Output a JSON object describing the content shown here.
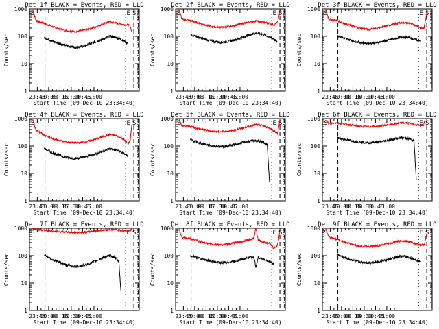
{
  "chart_data": {
    "type": "line",
    "yscale": "log",
    "ylim": [
      1,
      1000
    ],
    "ylabel": "Counts/sec",
    "xlabel": "Start Time (09-Dec-10 23:34:40)",
    "x_ticks": [
      "23:45",
      "00:00",
      "00:15",
      "00:30",
      "00:45",
      "01:00"
    ],
    "y_ticks": [
      "1",
      "10",
      "100",
      "1000"
    ],
    "markers": [
      "S",
      "E",
      "S"
    ],
    "colors": {
      "events": "#000000",
      "lld": "#ff0000",
      "axes": "#000000",
      "background": "#ffffff"
    },
    "panels": [
      {
        "title": "Det 1f BLACK = Events, RED = LLD",
        "red": [
          [
            23.65,
            900
          ],
          [
            23.72,
            380
          ],
          [
            23.9,
            300
          ],
          [
            24.1,
            220
          ],
          [
            24.4,
            160
          ],
          [
            24.6,
            150
          ],
          [
            24.8,
            170
          ],
          [
            25.0,
            210
          ],
          [
            25.2,
            280
          ],
          [
            25.35,
            340
          ],
          [
            25.5,
            300
          ],
          [
            25.65,
            270
          ],
          [
            25.75,
            260
          ],
          [
            25.8,
            240
          ],
          [
            25.83,
            150
          ]
        ],
        "black": [
          [
            23.9,
            90
          ],
          [
            24.1,
            65
          ],
          [
            24.4,
            45
          ],
          [
            24.6,
            40
          ],
          [
            24.8,
            45
          ],
          [
            25.0,
            60
          ],
          [
            25.2,
            80
          ],
          [
            25.35,
            100
          ],
          [
            25.5,
            90
          ],
          [
            25.65,
            70
          ],
          [
            25.75,
            55
          ]
        ],
        "lines": [
          23.92,
          25.7,
          25.88,
          25.98
        ]
      },
      {
        "title": "Det 2f BLACK = Events, RED = LLD",
        "red": [
          [
            23.65,
            950
          ],
          [
            23.72,
            420
          ],
          [
            23.9,
            380
          ],
          [
            24.1,
            300
          ],
          [
            24.4,
            220
          ],
          [
            24.6,
            210
          ],
          [
            24.8,
            230
          ],
          [
            25.0,
            280
          ],
          [
            25.2,
            330
          ],
          [
            25.35,
            360
          ],
          [
            25.5,
            330
          ],
          [
            25.65,
            300
          ],
          [
            25.75,
            260
          ],
          [
            25.83,
            330
          ],
          [
            25.88,
            800
          ]
        ],
        "black": [
          [
            23.9,
            120
          ],
          [
            24.1,
            90
          ],
          [
            24.4,
            65
          ],
          [
            24.6,
            60
          ],
          [
            24.8,
            68
          ],
          [
            25.0,
            85
          ],
          [
            25.2,
            115
          ],
          [
            25.35,
            130
          ],
          [
            25.5,
            120
          ],
          [
            25.65,
            95
          ],
          [
            25.75,
            80
          ],
          [
            25.82,
            60
          ]
        ],
        "lines": [
          23.92,
          25.7,
          25.88,
          25.98
        ]
      },
      {
        "title": "Det 3f BLACK = Events, RED = LLD",
        "red": [
          [
            23.65,
            950
          ],
          [
            23.72,
            420
          ],
          [
            23.9,
            380
          ],
          [
            24.1,
            280
          ],
          [
            24.4,
            200
          ],
          [
            24.6,
            180
          ],
          [
            24.8,
            200
          ],
          [
            25.0,
            240
          ],
          [
            25.2,
            290
          ],
          [
            25.35,
            320
          ],
          [
            25.5,
            300
          ],
          [
            25.65,
            250
          ],
          [
            25.75,
            200
          ],
          [
            25.82,
            190
          ],
          [
            25.88,
            750
          ]
        ],
        "black": [
          [
            23.9,
            110
          ],
          [
            24.1,
            80
          ],
          [
            24.4,
            60
          ],
          [
            24.6,
            55
          ],
          [
            24.8,
            60
          ],
          [
            25.0,
            70
          ],
          [
            25.2,
            85
          ],
          [
            25.35,
            95
          ],
          [
            25.5,
            90
          ],
          [
            25.65,
            75
          ],
          [
            25.75,
            65
          ]
        ],
        "lines": [
          23.92,
          25.7,
          25.88,
          25.98
        ]
      },
      {
        "title": "Det 4f BLACK = Events, RED = LLD",
        "red": [
          [
            23.65,
            950
          ],
          [
            23.72,
            380
          ],
          [
            23.9,
            250
          ],
          [
            24.1,
            180
          ],
          [
            24.4,
            140
          ],
          [
            24.6,
            130
          ],
          [
            24.8,
            140
          ],
          [
            25.0,
            170
          ],
          [
            25.2,
            220
          ],
          [
            25.35,
            260
          ],
          [
            25.5,
            240
          ],
          [
            25.65,
            180
          ],
          [
            25.75,
            120
          ],
          [
            25.8,
            160
          ],
          [
            25.85,
            1000
          ]
        ],
        "black": [
          [
            23.9,
            80
          ],
          [
            24.1,
            55
          ],
          [
            24.4,
            38
          ],
          [
            24.6,
            35
          ],
          [
            24.8,
            40
          ],
          [
            25.0,
            50
          ],
          [
            25.2,
            65
          ],
          [
            25.35,
            80
          ],
          [
            25.5,
            70
          ],
          [
            25.65,
            55
          ],
          [
            25.75,
            45
          ]
        ],
        "lines": [
          23.92,
          25.7,
          25.88,
          25.98
        ]
      },
      {
        "title": "Det 5f BLACK = Events, RED = LLD",
        "red": [
          [
            23.65,
            950
          ],
          [
            23.72,
            520
          ],
          [
            23.9,
            520
          ],
          [
            24.1,
            420
          ],
          [
            24.4,
            340
          ],
          [
            24.6,
            330
          ],
          [
            24.8,
            360
          ],
          [
            25.0,
            430
          ],
          [
            25.2,
            520
          ],
          [
            25.35,
            600
          ],
          [
            25.5,
            560
          ],
          [
            25.65,
            450
          ],
          [
            25.75,
            360
          ],
          [
            25.83,
            280
          ],
          [
            25.88,
            950
          ]
        ],
        "black": [
          [
            23.9,
            170
          ],
          [
            24.1,
            130
          ],
          [
            24.4,
            100
          ],
          [
            24.6,
            95
          ],
          [
            24.8,
            105
          ],
          [
            25.0,
            125
          ],
          [
            25.2,
            150
          ],
          [
            25.35,
            160
          ],
          [
            25.5,
            140
          ],
          [
            25.6,
            110
          ],
          [
            25.65,
            5
          ]
        ],
        "lines": [
          23.92,
          25.7,
          25.88,
          25.98
        ]
      },
      {
        "title": "Det 6f BLACK = Events, RED = LLD",
        "red": [
          [
            23.65,
            950
          ],
          [
            23.72,
            650
          ],
          [
            23.9,
            700
          ],
          [
            24.1,
            620
          ],
          [
            24.4,
            520
          ],
          [
            24.6,
            500
          ],
          [
            24.8,
            520
          ],
          [
            25.0,
            580
          ],
          [
            25.2,
            640
          ],
          [
            25.35,
            700
          ],
          [
            25.5,
            680
          ],
          [
            25.65,
            600
          ],
          [
            25.75,
            560
          ],
          [
            25.8,
            520
          ],
          [
            25.85,
            950
          ]
        ],
        "black": [
          [
            23.9,
            200
          ],
          [
            24.1,
            170
          ],
          [
            24.4,
            140
          ],
          [
            24.6,
            130
          ],
          [
            24.8,
            140
          ],
          [
            25.0,
            160
          ],
          [
            25.2,
            185
          ],
          [
            25.35,
            200
          ],
          [
            25.5,
            180
          ],
          [
            25.6,
            150
          ],
          [
            25.65,
            6
          ]
        ],
        "lines": [
          23.92,
          25.7,
          25.88,
          25.98
        ]
      },
      {
        "title": "Det 7f BLACK = Events, RED = LLD",
        "red": [
          [
            23.65,
            950
          ],
          [
            23.72,
            900
          ],
          [
            23.9,
            850
          ],
          [
            24.1,
            780
          ],
          [
            24.4,
            720
          ],
          [
            24.6,
            700
          ],
          [
            24.8,
            720
          ],
          [
            25.0,
            780
          ],
          [
            25.2,
            850
          ],
          [
            25.35,
            900
          ],
          [
            25.5,
            880
          ],
          [
            25.65,
            820
          ],
          [
            25.75,
            800
          ],
          [
            25.85,
            900
          ]
        ],
        "black": [
          [
            23.9,
            110
          ],
          [
            24.1,
            70
          ],
          [
            24.4,
            45
          ],
          [
            24.6,
            40
          ],
          [
            24.8,
            45
          ],
          [
            25.0,
            60
          ],
          [
            25.2,
            85
          ],
          [
            25.35,
            100
          ],
          [
            25.45,
            90
          ],
          [
            25.55,
            60
          ],
          [
            25.6,
            4
          ]
        ],
        "lines": [
          23.92,
          25.7,
          25.88,
          25.98
        ]
      },
      {
        "title": "Det 8f BLACK = Events, RED = LLD",
        "red": [
          [
            23.65,
            950
          ],
          [
            23.72,
            460
          ],
          [
            23.9,
            420
          ],
          [
            24.1,
            330
          ],
          [
            24.4,
            260
          ],
          [
            24.6,
            250
          ],
          [
            24.8,
            270
          ],
          [
            25.0,
            320
          ],
          [
            25.2,
            380
          ],
          [
            25.3,
            420
          ],
          [
            25.35,
            1000
          ],
          [
            25.4,
            380
          ],
          [
            25.5,
            320
          ],
          [
            25.65,
            280
          ],
          [
            25.75,
            180
          ],
          [
            25.83,
            250
          ],
          [
            25.88,
            800
          ]
        ],
        "black": [
          [
            23.9,
            100
          ],
          [
            24.1,
            80
          ],
          [
            24.4,
            60
          ],
          [
            24.6,
            55
          ],
          [
            24.8,
            60
          ],
          [
            25.0,
            70
          ],
          [
            25.2,
            85
          ],
          [
            25.3,
            90
          ],
          [
            25.35,
            40
          ],
          [
            25.4,
            85
          ],
          [
            25.5,
            75
          ],
          [
            25.65,
            60
          ],
          [
            25.75,
            50
          ]
        ],
        "lines": [
          23.92,
          25.7,
          25.88,
          25.98
        ]
      },
      {
        "title": "Det 9f BLACK = Events, RED = LLD",
        "red": [
          [
            23.65,
            950
          ],
          [
            23.72,
            480
          ],
          [
            23.9,
            400
          ],
          [
            24.1,
            300
          ],
          [
            24.4,
            220
          ],
          [
            24.6,
            210
          ],
          [
            24.8,
            230
          ],
          [
            25.0,
            270
          ],
          [
            25.2,
            320
          ],
          [
            25.35,
            350
          ],
          [
            25.5,
            320
          ],
          [
            25.65,
            270
          ],
          [
            25.75,
            240
          ],
          [
            25.83,
            260
          ],
          [
            25.88,
            650
          ]
        ],
        "black": [
          [
            23.9,
            110
          ],
          [
            24.1,
            80
          ],
          [
            24.4,
            58
          ],
          [
            24.6,
            55
          ],
          [
            24.8,
            60
          ],
          [
            25.0,
            70
          ],
          [
            25.2,
            85
          ],
          [
            25.35,
            95
          ],
          [
            25.5,
            85
          ],
          [
            25.65,
            70
          ],
          [
            25.75,
            60
          ]
        ],
        "lines": [
          23.92,
          25.7,
          25.88,
          25.98
        ]
      }
    ]
  }
}
